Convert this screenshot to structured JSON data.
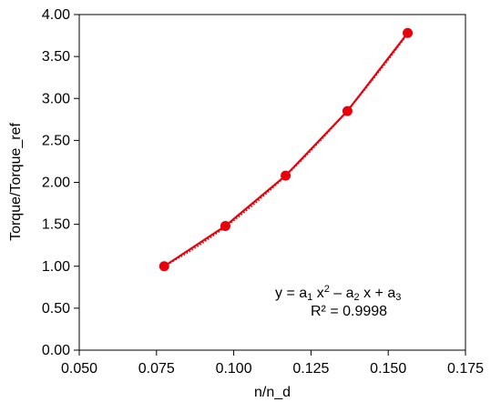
{
  "chart_data": {
    "type": "line",
    "xlabel": "n/n_d",
    "ylabel": "Torque/Torque_ref",
    "xlim": [
      0.05,
      0.175
    ],
    "ylim": [
      0,
      4
    ],
    "x_ticks": [
      "0.050",
      "0.075",
      "0.100",
      "0.125",
      "0.150",
      "0.175"
    ],
    "y_ticks": [
      "0.00",
      "0.50",
      "1.00",
      "1.50",
      "2.00",
      "2.50",
      "3.00",
      "3.50",
      "4.00"
    ],
    "grid": false,
    "series": [
      {
        "color": "#e8000b",
        "marker": "circle",
        "x": [
          0.0775,
          0.0973,
          0.1168,
          0.1368,
          0.1563
        ],
        "y": [
          1.0,
          1.48,
          2.08,
          2.85,
          3.78
        ]
      }
    ],
    "trendline": {
      "kind": "polynomial-order-2",
      "style": "dotted",
      "color": "#e8000b"
    },
    "annotation": {
      "equation": {
        "lead": "y = a",
        "sub1": "1",
        "x1": " x",
        "sup": "2",
        "minus": " – a",
        "sub2": "2",
        "x2": " x + a",
        "sub3": "3"
      },
      "r2": "R² = 0.9998"
    }
  }
}
